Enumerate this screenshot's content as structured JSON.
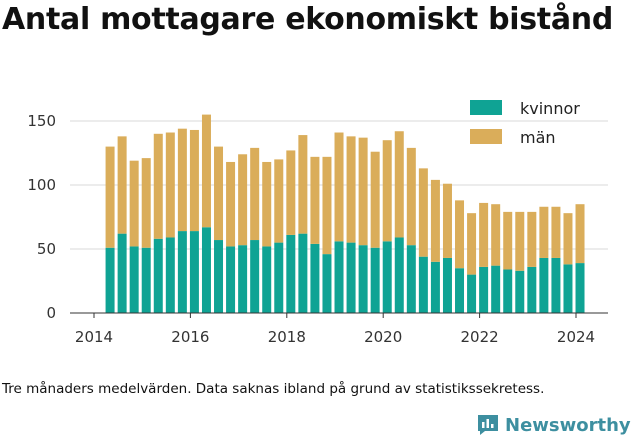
{
  "title": "Antal mottagare ekonomiskt bistånd",
  "footnote": "Tre månaders medelvärden. Data saknas ibland på grund av statistikssekretess.",
  "brand": {
    "name": "Newsworthy",
    "icon": "bar-chart-logo-icon",
    "color": "#3d8fa0"
  },
  "colors": {
    "kvinnor": "#0fa394",
    "man": "#daad5a",
    "grid": "#d9d9d9"
  },
  "chart_data": {
    "type": "bar",
    "stacked": true,
    "legend": {
      "position": "top-right",
      "items": [
        "kvinnor",
        "män"
      ]
    },
    "x_ticks": [
      "2014",
      "2016",
      "2018",
      "2020",
      "2022",
      "2024"
    ],
    "y_ticks": [
      "0",
      "50",
      "100",
      "150"
    ],
    "ylim": [
      0,
      160
    ],
    "grid": true,
    "x": [
      "2014-05",
      "2014-08",
      "2014-11",
      "2015-02",
      "2015-05",
      "2015-08",
      "2015-11",
      "2016-02",
      "2016-05",
      "2016-08",
      "2016-11",
      "2017-02",
      "2017-05",
      "2017-08",
      "2017-11",
      "2018-02",
      "2018-05",
      "2018-08",
      "2018-11",
      "2019-02",
      "2019-05",
      "2019-08",
      "2019-11",
      "2020-02",
      "2020-05",
      "2020-08",
      "2020-11",
      "2021-02",
      "2021-05",
      "2021-08",
      "2021-11",
      "2022-02",
      "2022-05",
      "2022-08",
      "2022-11",
      "2023-02",
      "2023-05",
      "2023-08",
      "2023-11",
      "2024-02"
    ],
    "series": [
      {
        "name": "kvinnor",
        "values": [
          51,
          62,
          52,
          51,
          58,
          59,
          64,
          64,
          67,
          57,
          52,
          53,
          57,
          52,
          55,
          61,
          62,
          54,
          46,
          56,
          55,
          53,
          51,
          56,
          59,
          53,
          44,
          40,
          43,
          35,
          30,
          36,
          37,
          34,
          33,
          36,
          43,
          43,
          38,
          39
        ]
      },
      {
        "name": "män",
        "values": [
          79,
          76,
          67,
          70,
          82,
          82,
          80,
          79,
          88,
          73,
          66,
          71,
          72,
          66,
          65,
          66,
          77,
          68,
          76,
          85,
          83,
          84,
          75,
          79,
          83,
          76,
          69,
          64,
          58,
          53,
          48,
          50,
          48,
          45,
          46,
          43,
          40,
          40,
          40,
          46
        ]
      }
    ]
  }
}
